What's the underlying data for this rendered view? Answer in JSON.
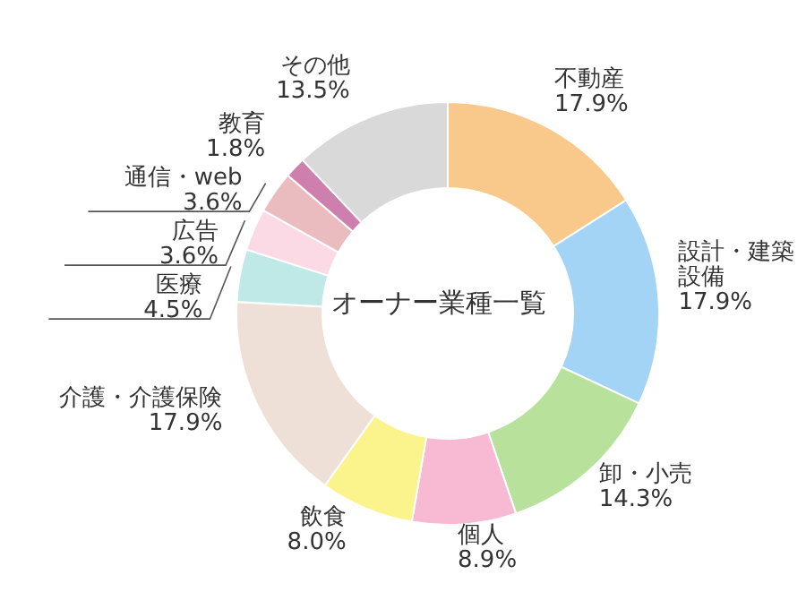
{
  "chart_data": {
    "type": "donut",
    "title": "オーナー業種一覧",
    "categories": [
      "不動産",
      "設計・建築設備",
      "卸・小売",
      "個人",
      "飲食",
      "介護・介護保険",
      "医療",
      "広告",
      "通信・web",
      "教育",
      "その他"
    ],
    "values": [
      17.9,
      17.9,
      14.3,
      8.9,
      8.0,
      17.9,
      4.5,
      3.6,
      3.6,
      1.8,
      13.5
    ],
    "colors": [
      "#f9c98b",
      "#a3d4f5",
      "#b8e19c",
      "#f8b9d3",
      "#fbf38c",
      "#eee0d6",
      "#bfe9e6",
      "#fcdae5",
      "#eabbbf",
      "#cf7fae",
      "#d9d9d9"
    ],
    "value_labels": [
      "17.9%",
      "17.9%",
      "14.3%",
      "8.9%",
      "8.0%",
      "17.9%",
      "4.5%",
      "3.6%",
      "3.6%",
      "1.8%",
      "13.5%"
    ]
  }
}
